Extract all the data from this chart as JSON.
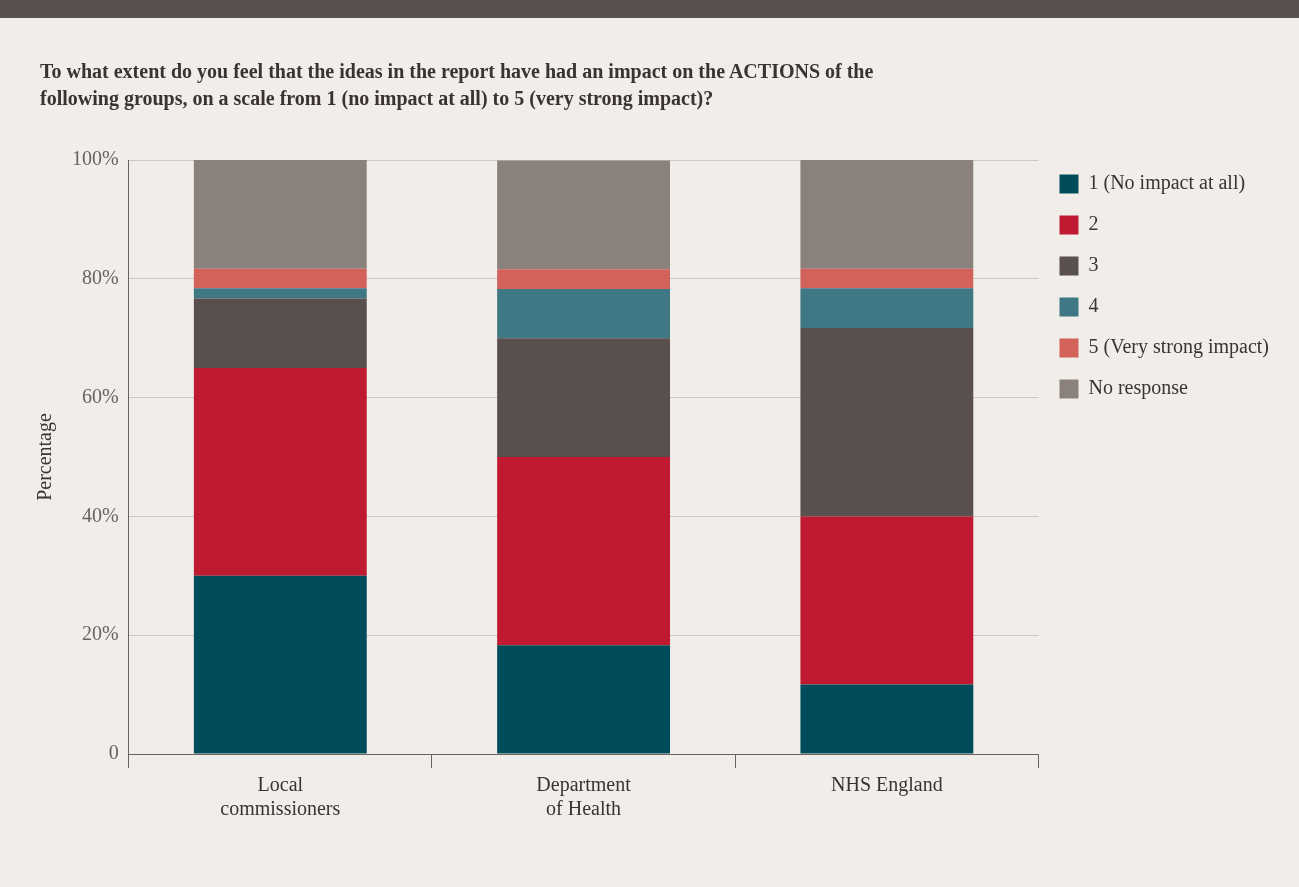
{
  "chart_data": {
    "type": "bar",
    "title": "To what extent do you feel that the ideas in the report have had an impact on the ACTIONS of the following groups, on a scale from 1 (no impact at all) to 5 (very strong impact)?",
    "ylabel": "Percentage",
    "categories": [
      "Local commissioners",
      "Department of Health",
      "NHS England"
    ],
    "stacked": true,
    "series": [
      {
        "name": "1 (No impact at all)",
        "color": "#004c5a",
        "values": [
          30,
          18.3,
          11.7
        ]
      },
      {
        "name": "2",
        "color": "#c01a33",
        "values": [
          35,
          31.7,
          28.3
        ]
      },
      {
        "name": "3",
        "color": "#594f4c",
        "values": [
          11.7,
          20,
          31.7
        ]
      },
      {
        "name": "4",
        "color": "#407784",
        "values": [
          1.7,
          8.3,
          6.7
        ]
      },
      {
        "name": "5 (Very strong impact)",
        "color": "#d3625b",
        "values": [
          3.3,
          3.3,
          3.3
        ]
      },
      {
        "name": "No response",
        "color": "#8a807c",
        "values": [
          18.3,
          18.3,
          18.3
        ]
      }
    ],
    "ylim": [
      0,
      100
    ],
    "yticks": [
      0,
      {
        "value": 20,
        "label": "20%"
      },
      {
        "value": 40,
        "label": "40%"
      },
      {
        "value": 60,
        "label": "60%"
      },
      {
        "value": 80,
        "label": "80%"
      },
      {
        "value": 100,
        "label": "100%"
      }
    ],
    "grid": "y",
    "legend": "right"
  }
}
